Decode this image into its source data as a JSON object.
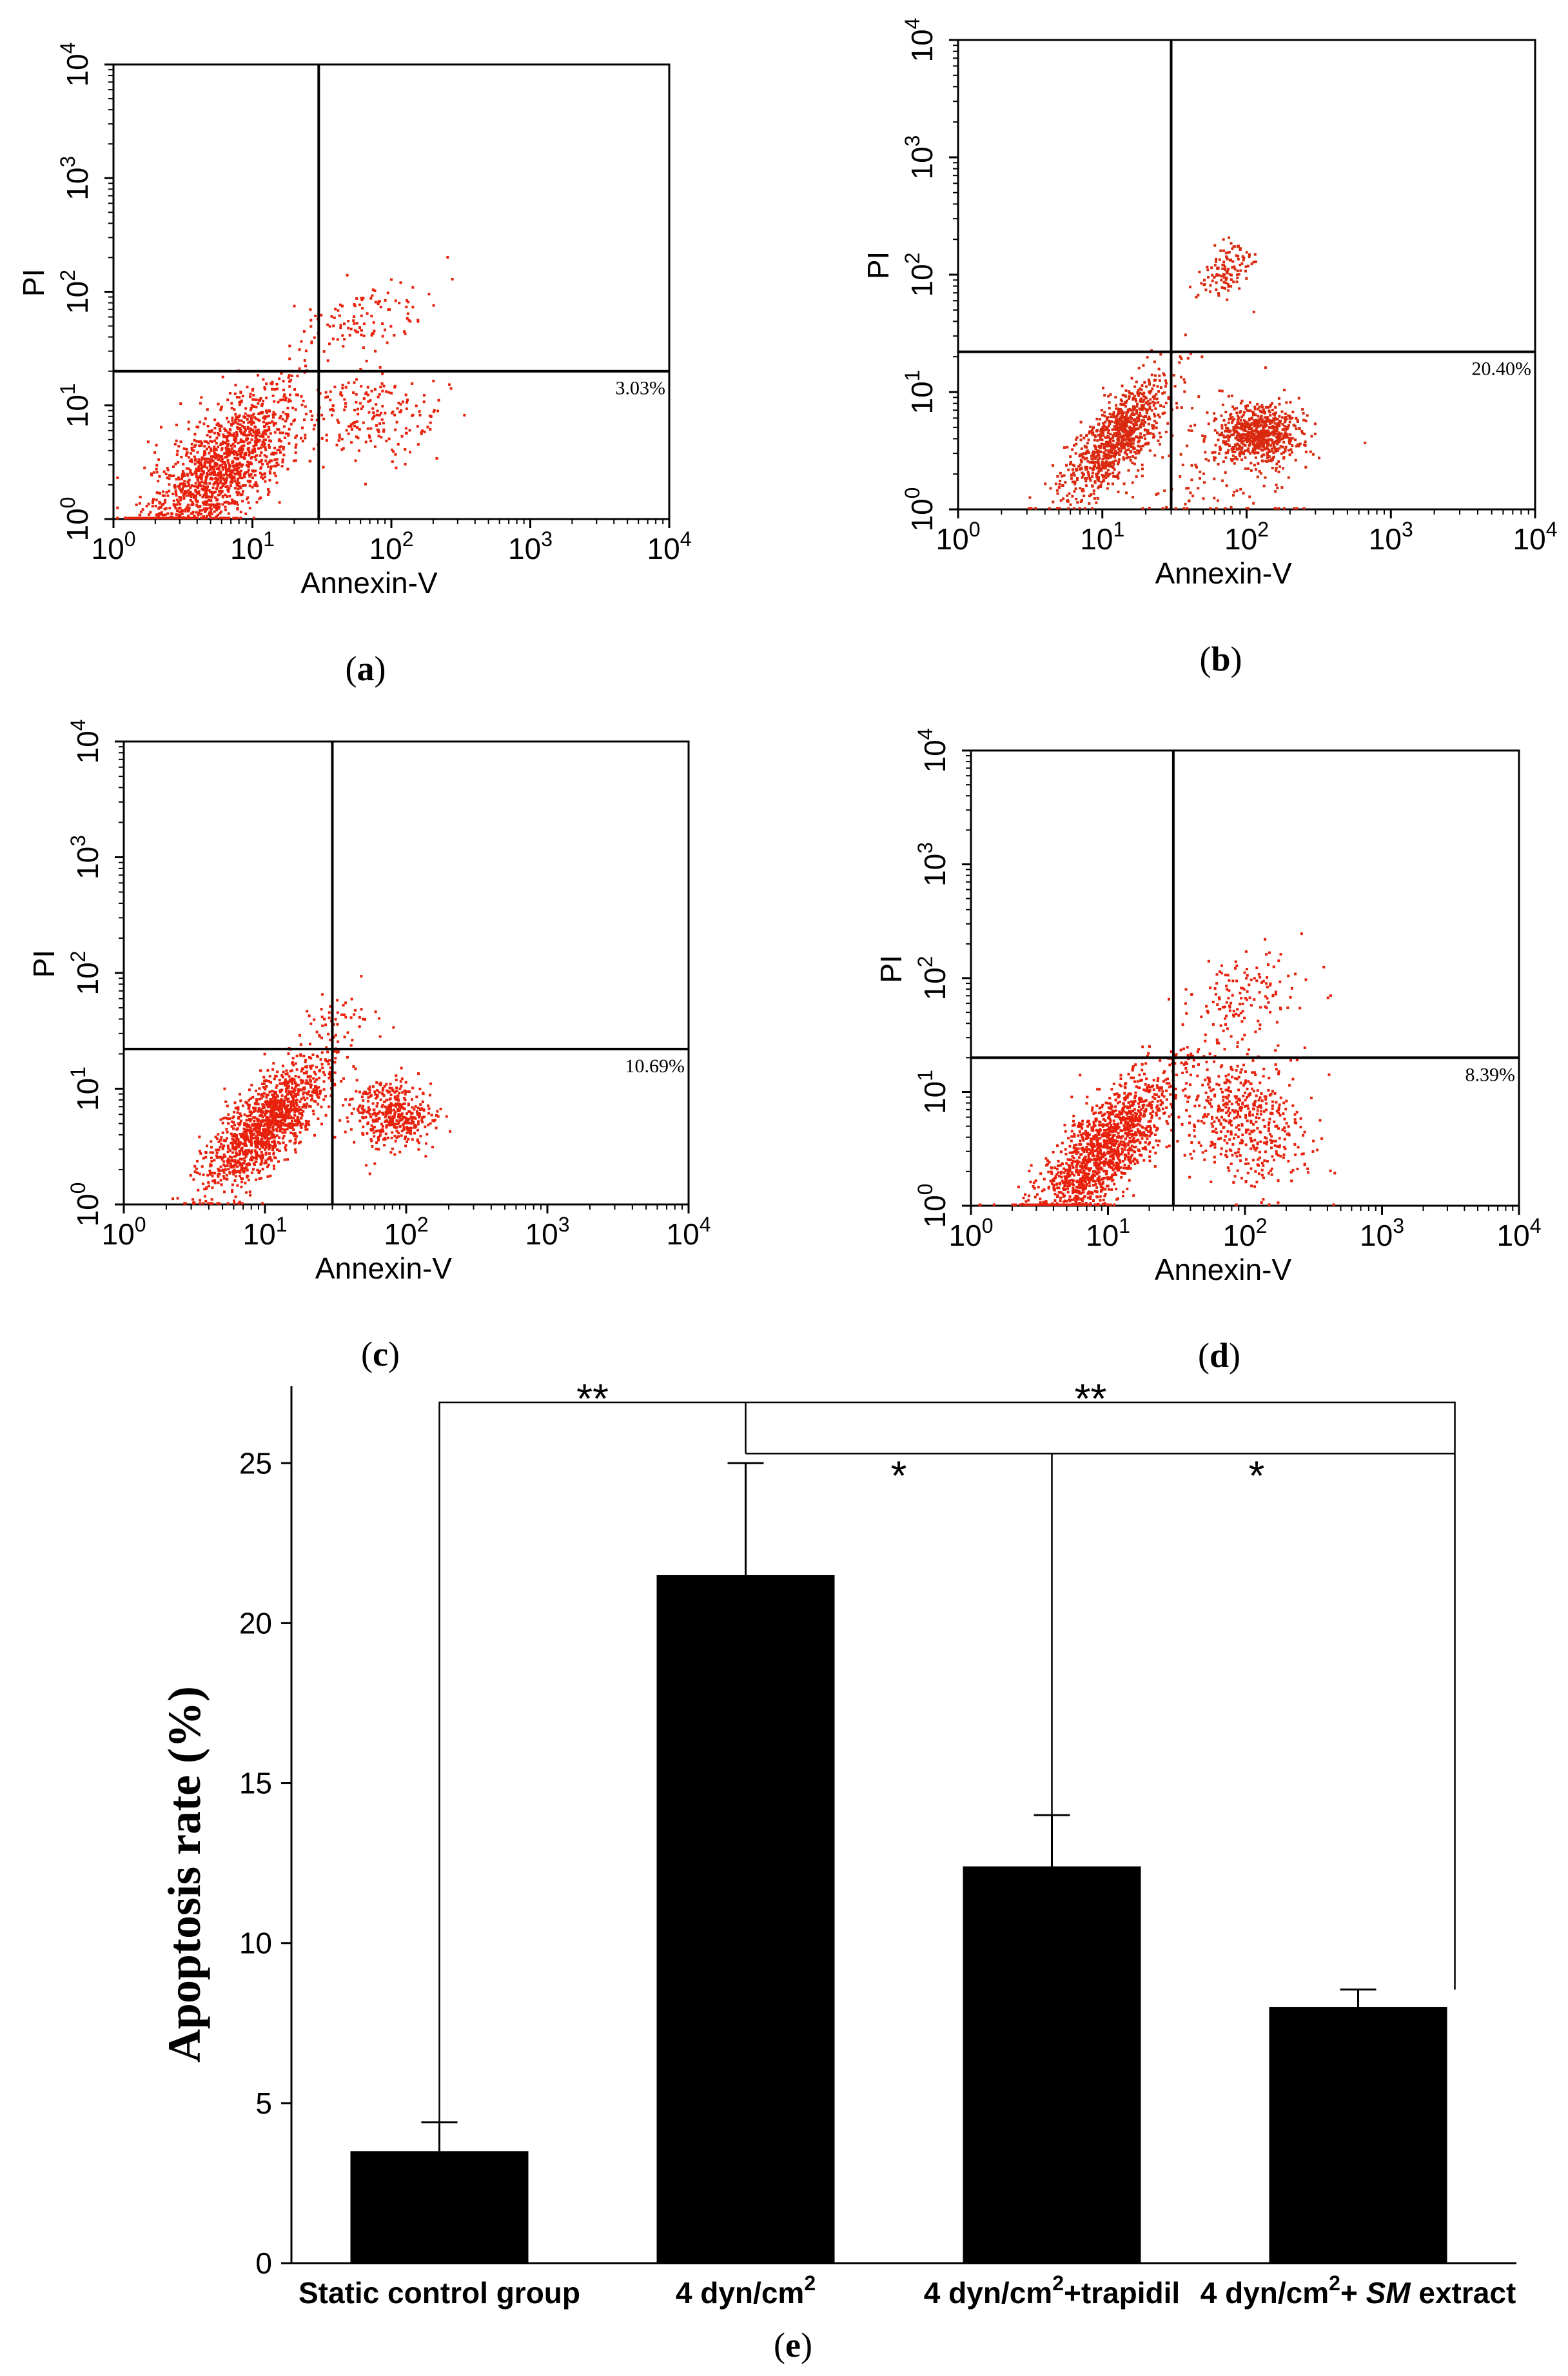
{
  "flow_panels": [
    {
      "id": "a",
      "panel_label": "a",
      "x_axis_label": "Annexin-V",
      "y_axis_label": "PI",
      "decade_base": "10",
      "decades": [
        "0",
        "1",
        "2",
        "3",
        "4"
      ],
      "gate_annexin": 30,
      "gate_pi": 20,
      "quadrant_percent": "3.03%",
      "point_color": "#e8210c",
      "clusters": [
        {
          "annexin": 6,
          "pi": 3,
          "count": 1400,
          "spread_x": 0.28,
          "spread_y": 0.3,
          "tilt": 0.8
        },
        {
          "annexin": 80,
          "pi": 8,
          "count": 180,
          "spread_x": 0.25,
          "spread_y": 0.18,
          "tilt": 0
        },
        {
          "annexin": 60,
          "pi": 55,
          "count": 120,
          "spread_x": 0.25,
          "spread_y": 0.2,
          "tilt": 0.4
        }
      ]
    },
    {
      "id": "b",
      "panel_label": "b",
      "x_axis_label": "Annexin-V",
      "y_axis_label": "PI",
      "decade_base": "10",
      "decades": [
        "0",
        "1",
        "2",
        "3",
        "4"
      ],
      "gate_annexin": 30,
      "gate_pi": 22,
      "quadrant_percent": "20.40%",
      "point_color": "#d9290f",
      "clusters": [
        {
          "annexin": 12,
          "pi": 4,
          "count": 900,
          "spread_x": 0.18,
          "spread_y": 0.22,
          "tilt": 0.9
        },
        {
          "annexin": 120,
          "pi": 4.5,
          "count": 650,
          "spread_x": 0.14,
          "spread_y": 0.12,
          "tilt": 0
        },
        {
          "annexin": 70,
          "pi": 110,
          "count": 120,
          "spread_x": 0.1,
          "spread_y": 0.12,
          "tilt": 0.6
        },
        {
          "annexin": 60,
          "pi": 3,
          "count": 160,
          "spread_x": 0.35,
          "spread_y": 0.3,
          "tilt": 0
        }
      ]
    },
    {
      "id": "c",
      "panel_label": "c",
      "x_axis_label": "Annexin-V",
      "y_axis_label": "PI",
      "decade_base": "10",
      "decades": [
        "0",
        "1",
        "2",
        "3",
        "4"
      ],
      "gate_annexin": 30,
      "gate_pi": 22,
      "quadrant_percent": "10.69%",
      "point_color": "#e8210c",
      "clusters": [
        {
          "annexin": 10,
          "pi": 5,
          "count": 1300,
          "spread_x": 0.22,
          "spread_y": 0.25,
          "tilt": 0.9
        },
        {
          "annexin": 80,
          "pi": 6,
          "count": 420,
          "spread_x": 0.14,
          "spread_y": 0.15,
          "tilt": 0
        },
        {
          "annexin": 35,
          "pi": 40,
          "count": 50,
          "spread_x": 0.12,
          "spread_y": 0.15,
          "tilt": 0.3
        }
      ]
    },
    {
      "id": "d",
      "panel_label": "d",
      "x_axis_label": "Annexin-V",
      "y_axis_label": "PI",
      "decade_base": "10",
      "decades": [
        "0",
        "1",
        "2",
        "3",
        "4"
      ],
      "gate_annexin": 30,
      "gate_pi": 20,
      "quadrant_percent": "8.39%",
      "point_color": "#e8210c",
      "clusters": [
        {
          "annexin": 9,
          "pi": 3,
          "count": 1500,
          "spread_x": 0.25,
          "spread_y": 0.3,
          "tilt": 0.9
        },
        {
          "annexin": 100,
          "pi": 6,
          "count": 500,
          "spread_x": 0.22,
          "spread_y": 0.28,
          "tilt": -0.2
        },
        {
          "annexin": 90,
          "pi": 70,
          "count": 140,
          "spread_x": 0.22,
          "spread_y": 0.2,
          "tilt": 0.3
        }
      ]
    }
  ],
  "chart_data": {
    "type": "bar",
    "panel_label": "e",
    "ylabel": "Apoptosis rate (%)",
    "ylim": [
      0,
      27
    ],
    "yticks": [
      0,
      5,
      10,
      15,
      20,
      25
    ],
    "categories": [
      {
        "text": "Static control group",
        "super": "",
        "after": "",
        "italic": "",
        "tail": ""
      },
      {
        "text": "4 dyn/cm",
        "super": "2",
        "after": "",
        "italic": "",
        "tail": ""
      },
      {
        "text": "4 dyn/cm",
        "super": "2",
        "after": "+trapidil",
        "italic": "",
        "tail": ""
      },
      {
        "text": "4 dyn/cm",
        "super": "2",
        "after": "+ ",
        "italic": "SM",
        "tail": " extract"
      }
    ],
    "values": [
      3.5,
      21.5,
      12.4,
      8.0
    ],
    "errors": [
      0.9,
      3.5,
      1.6,
      0.55
    ],
    "bar_color": "#000000",
    "significance": [
      {
        "from": 0,
        "to": 1,
        "label": "**",
        "level": 26.9
      },
      {
        "from": 1,
        "to": 3,
        "label": "**",
        "level": 26.9
      },
      {
        "from": 2,
        "to": 3,
        "label": "*",
        "level": 25.3
      }
    ]
  }
}
